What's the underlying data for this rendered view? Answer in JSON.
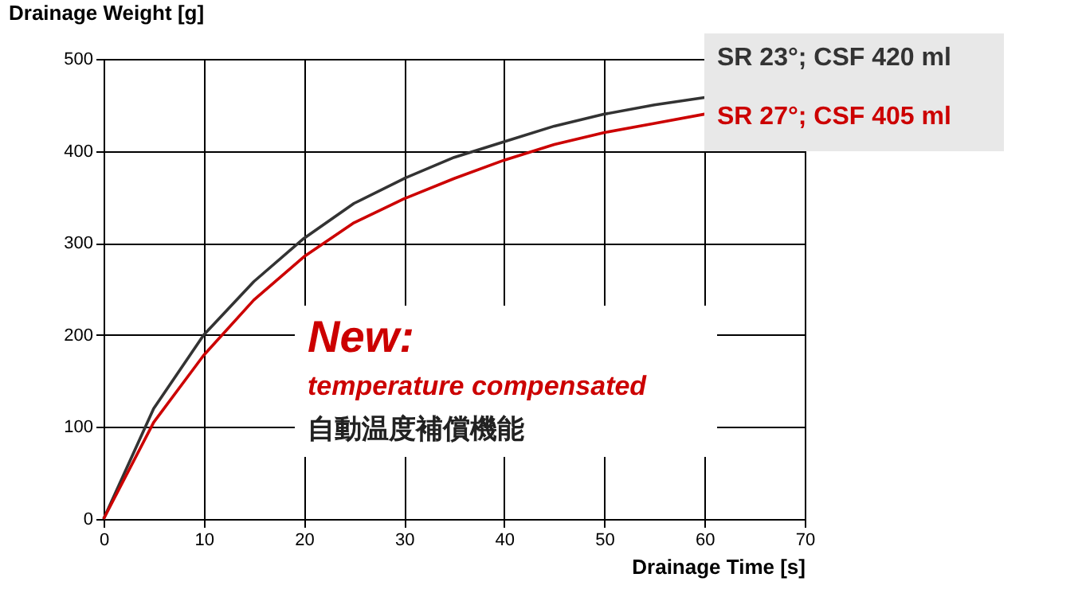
{
  "chart_data": {
    "type": "line",
    "xlabel": "Drainage Time [s]",
    "ylabel": "Drainage Weight [g]",
    "xlim": [
      0,
      70
    ],
    "xticks": [
      0,
      10,
      20,
      30,
      40,
      50,
      60,
      70
    ],
    "ylim": [
      0,
      500
    ],
    "yticks": [
      0,
      100,
      200,
      300,
      400,
      500
    ],
    "grid": true,
    "legend": "top right",
    "marker": "none",
    "line_style": "solid",
    "series": [
      {
        "name": "SR 23°; CSF  420 ml",
        "color": "#333333",
        "x": [
          0,
          5,
          10,
          15,
          20,
          25,
          30,
          35,
          40,
          45,
          50,
          55,
          60
        ],
        "values": [
          0,
          120,
          200,
          258,
          305,
          343,
          370,
          393,
          410,
          427,
          440,
          450,
          458
        ]
      },
      {
        "name": "SR 27°; CSF  405 ml",
        "color": "#cc0000",
        "x": [
          0,
          5,
          10,
          15,
          20,
          25,
          30,
          35,
          40,
          45,
          50,
          55,
          60
        ],
        "values": [
          0,
          105,
          178,
          238,
          285,
          322,
          348,
          370,
          390,
          407,
          420,
          430,
          440
        ]
      }
    ],
    "annotations": [
      "New:",
      "temperature compensated",
      "自動温度補償機能"
    ]
  }
}
